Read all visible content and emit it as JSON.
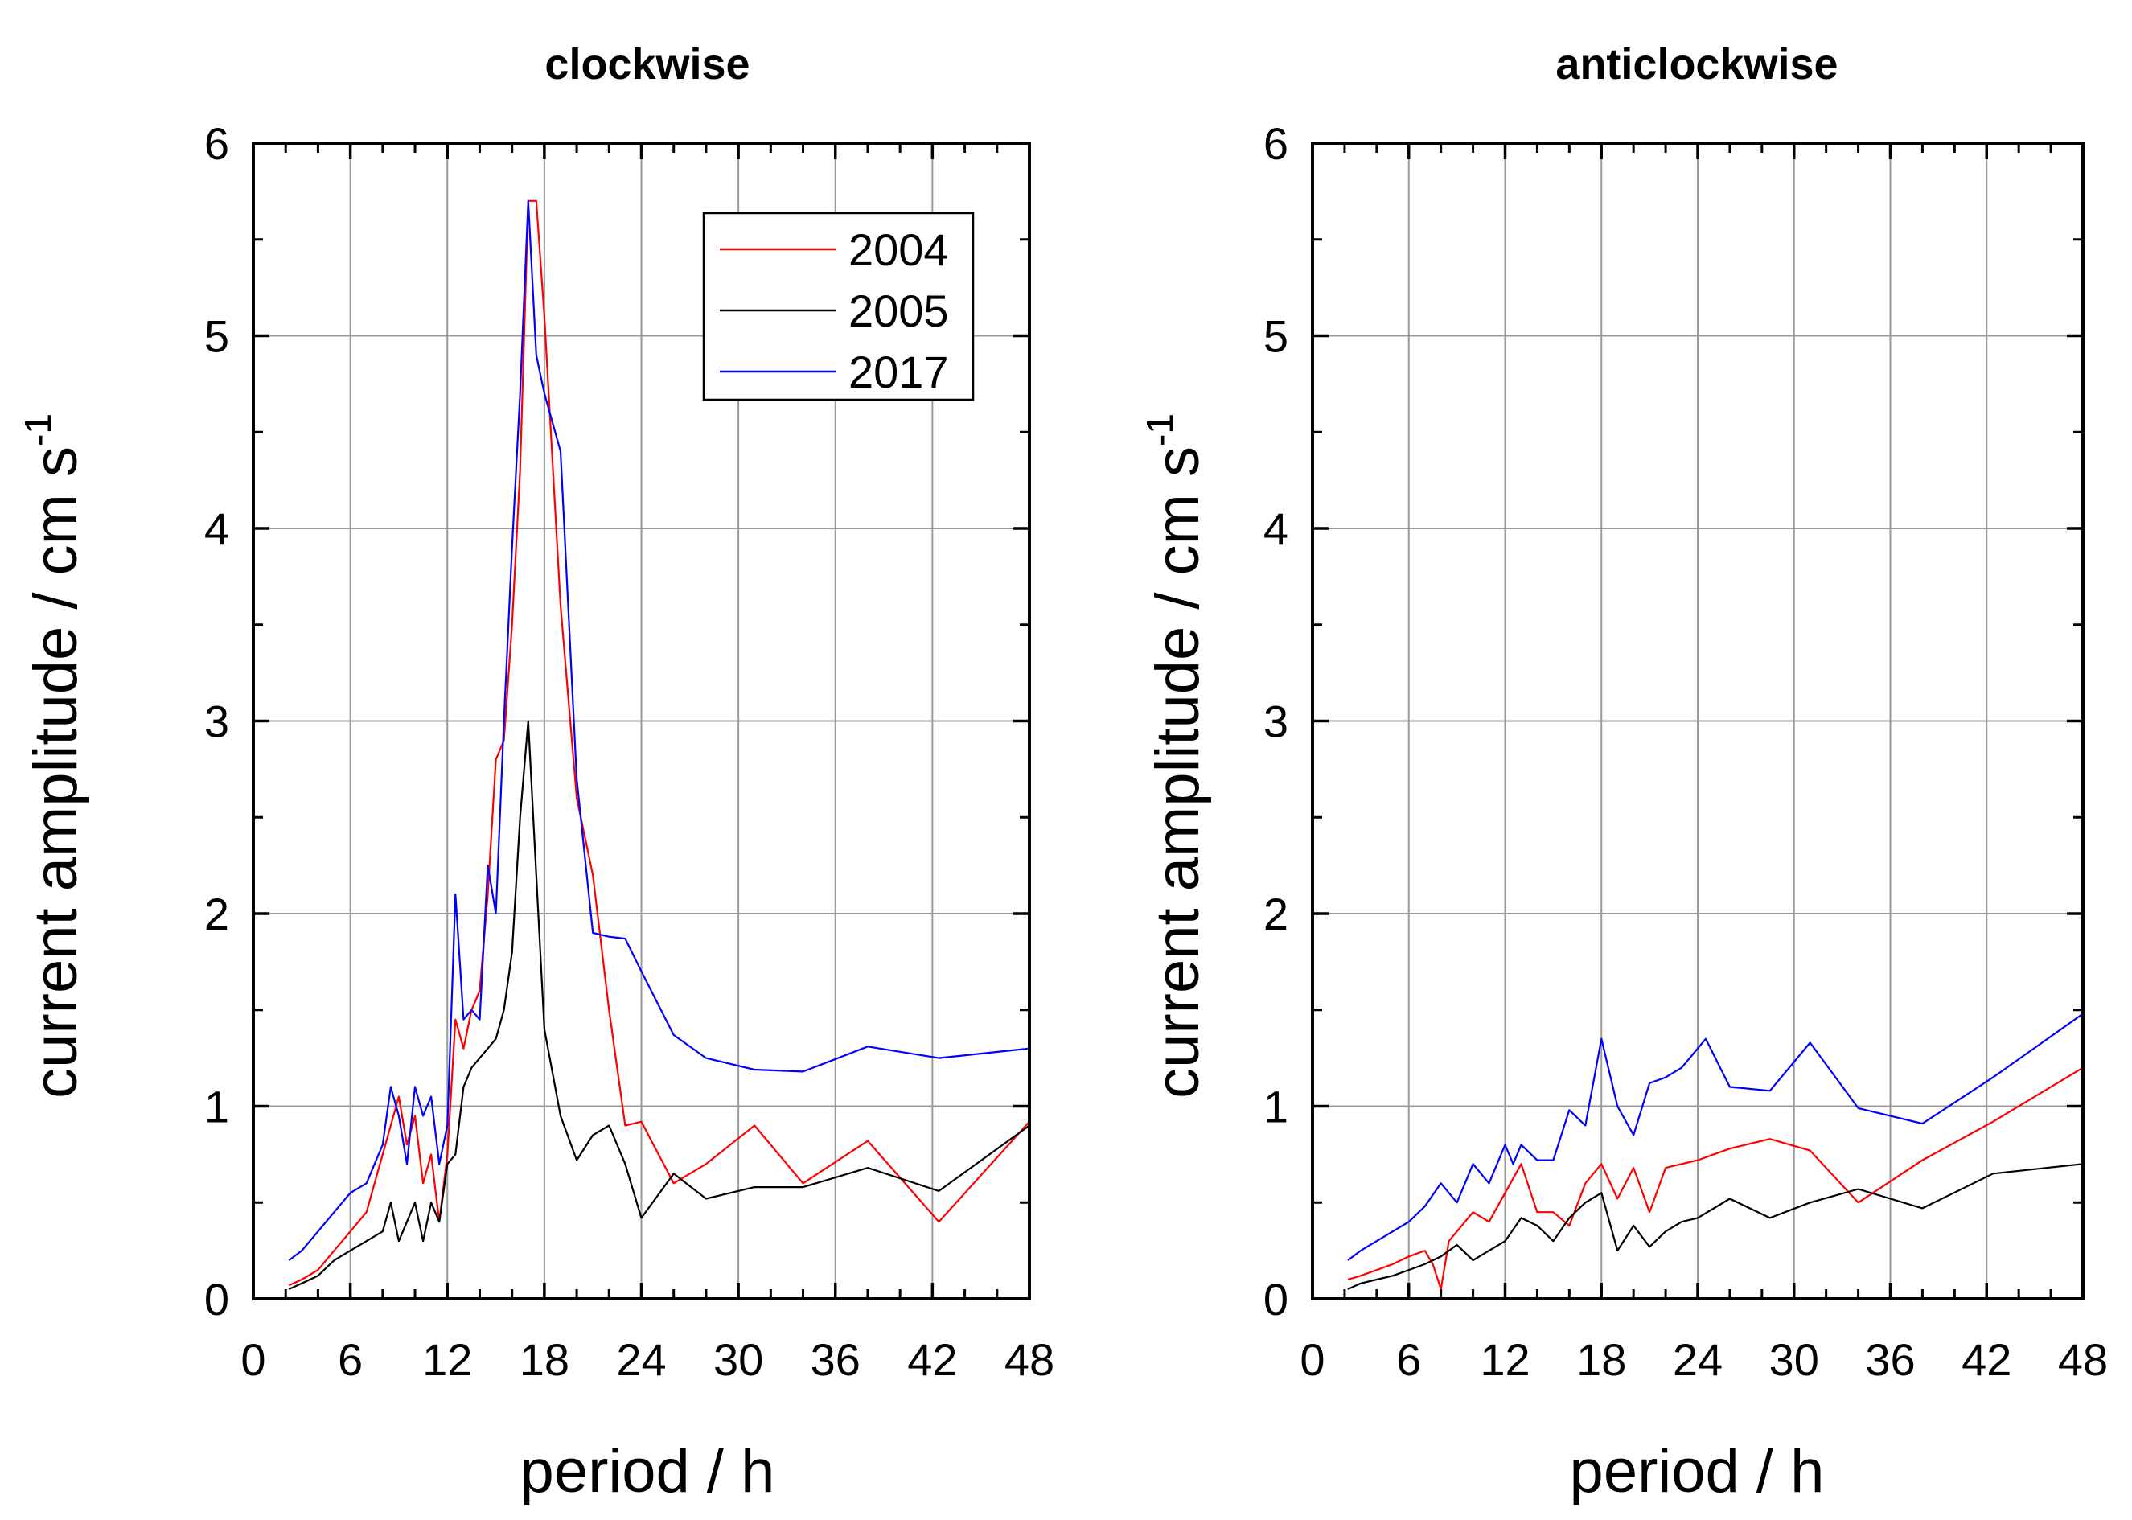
{
  "chart_data": [
    {
      "type": "line",
      "title": "clockwise",
      "xlabel": "period / h",
      "ylabel": "current amplitude / cm s",
      "ylabel_superscript": "-1",
      "xlim": [
        0,
        48
      ],
      "ylim": [
        0,
        6
      ],
      "xticks": [
        "0",
        "6",
        "12",
        "18",
        "24",
        "30",
        "36",
        "42",
        "48"
      ],
      "yticks": [
        "0",
        "1",
        "2",
        "3",
        "4",
        "5",
        "6"
      ],
      "grid": true,
      "legend": "top-right",
      "series": [
        {
          "name": "2004",
          "color": "#ff0000",
          "x": [
            2.2,
            3,
            4,
            5,
            6,
            7,
            8,
            8.5,
            9,
            9.5,
            10,
            10.5,
            11,
            11.5,
            12,
            12.5,
            13,
            13.5,
            14,
            14.5,
            15,
            15.5,
            16,
            16.5,
            17,
            17.5,
            18,
            19,
            20,
            21,
            22,
            23,
            24,
            26,
            28,
            31,
            34,
            38,
            42.4,
            48
          ],
          "y": [
            0.07,
            0.1,
            0.15,
            0.25,
            0.35,
            0.45,
            0.75,
            0.9,
            1.05,
            0.8,
            0.95,
            0.6,
            0.75,
            0.4,
            0.75,
            1.45,
            1.3,
            1.5,
            1.6,
            2.1,
            2.8,
            2.9,
            3.5,
            4.3,
            5.7,
            5.7,
            5.1,
            3.6,
            2.6,
            2.2,
            1.5,
            0.9,
            0.92,
            0.6,
            0.7,
            0.9,
            0.6,
            0.82,
            0.4,
            0.92
          ]
        },
        {
          "name": "2005",
          "color": "#000000",
          "x": [
            2.2,
            3,
            4,
            5,
            6,
            7,
            8,
            8.5,
            9,
            9.5,
            10,
            10.5,
            11,
            11.5,
            12,
            12.5,
            13,
            13.5,
            14,
            14.5,
            15,
            15.5,
            16,
            16.5,
            17,
            17.5,
            18,
            19,
            20,
            21,
            22,
            23,
            24,
            26,
            28,
            31,
            34,
            38,
            42.4,
            48
          ],
          "y": [
            0.05,
            0.08,
            0.12,
            0.2,
            0.25,
            0.3,
            0.35,
            0.5,
            0.3,
            0.4,
            0.5,
            0.3,
            0.5,
            0.4,
            0.7,
            0.75,
            1.1,
            1.2,
            1.25,
            1.3,
            1.35,
            1.5,
            1.8,
            2.5,
            3.0,
            2.2,
            1.4,
            0.95,
            0.72,
            0.85,
            0.9,
            0.7,
            0.42,
            0.65,
            0.52,
            0.58,
            0.58,
            0.68,
            0.56,
            0.9
          ]
        },
        {
          "name": "2017",
          "color": "#0000ff",
          "x": [
            2.2,
            3,
            4,
            5,
            6,
            7,
            8,
            8.5,
            9,
            9.5,
            10,
            10.5,
            11,
            11.5,
            12,
            12.5,
            13,
            13.5,
            14,
            14.5,
            15,
            15.5,
            16,
            16.5,
            17,
            17.5,
            18,
            19,
            20,
            21,
            22,
            23,
            24,
            26,
            28,
            31,
            34,
            38,
            42.4,
            48
          ],
          "y": [
            0.2,
            0.25,
            0.35,
            0.45,
            0.55,
            0.6,
            0.8,
            1.1,
            0.95,
            0.7,
            1.1,
            0.95,
            1.05,
            0.7,
            0.9,
            2.1,
            1.45,
            1.5,
            1.45,
            2.25,
            2.0,
            3.0,
            3.9,
            4.7,
            5.7,
            4.9,
            4.7,
            4.4,
            2.7,
            1.9,
            1.88,
            1.87,
            1.7,
            1.37,
            1.25,
            1.19,
            1.18,
            1.31,
            1.25,
            1.3
          ]
        }
      ]
    },
    {
      "type": "line",
      "title": "anticlockwise",
      "xlabel": "period / h",
      "ylabel": "current amplitude / cm s",
      "ylabel_superscript": "-1",
      "xlim": [
        0,
        48
      ],
      "ylim": [
        0,
        6
      ],
      "xticks": [
        "0",
        "6",
        "12",
        "18",
        "24",
        "30",
        "36",
        "42",
        "48"
      ],
      "yticks": [
        "0",
        "1",
        "2",
        "3",
        "4",
        "5",
        "6"
      ],
      "grid": true,
      "series": [
        {
          "name": "2004",
          "color": "#ff0000",
          "x": [
            2.2,
            3,
            4,
            5,
            6,
            7,
            7.5,
            8,
            8.5,
            9,
            10,
            11,
            12,
            13,
            14,
            15,
            16,
            17,
            18,
            19,
            20,
            21,
            22,
            23,
            24,
            26,
            28.5,
            31,
            34,
            38,
            42.4,
            48
          ],
          "y": [
            0.1,
            0.12,
            0.15,
            0.18,
            0.22,
            0.25,
            0.18,
            0.05,
            0.3,
            0.35,
            0.45,
            0.4,
            0.55,
            0.7,
            0.45,
            0.45,
            0.38,
            0.6,
            0.7,
            0.52,
            0.68,
            0.45,
            0.68,
            0.7,
            0.72,
            0.78,
            0.83,
            0.77,
            0.5,
            0.72,
            0.92,
            1.2
          ]
        },
        {
          "name": "2005",
          "color": "#000000",
          "x": [
            2.2,
            3,
            4,
            5,
            6,
            7,
            8,
            9,
            10,
            11,
            12,
            13,
            14,
            15,
            16,
            17,
            18,
            19,
            20,
            21,
            22,
            23,
            24,
            26,
            28.5,
            31,
            34,
            38,
            42.4,
            48
          ],
          "y": [
            0.05,
            0.08,
            0.1,
            0.12,
            0.15,
            0.18,
            0.22,
            0.28,
            0.2,
            0.25,
            0.3,
            0.42,
            0.38,
            0.3,
            0.42,
            0.5,
            0.55,
            0.25,
            0.38,
            0.27,
            0.35,
            0.4,
            0.42,
            0.52,
            0.42,
            0.5,
            0.57,
            0.47,
            0.65,
            0.7
          ]
        },
        {
          "name": "2017",
          "color": "#0000ff",
          "x": [
            2.2,
            3,
            4,
            5,
            6,
            7,
            8,
            9,
            10,
            11,
            12,
            12.5,
            13,
            14,
            15,
            16,
            17,
            18,
            19,
            20,
            21,
            22,
            23,
            24.5,
            26,
            28.5,
            31,
            34,
            38,
            42.4,
            48
          ],
          "y": [
            0.2,
            0.25,
            0.3,
            0.35,
            0.4,
            0.48,
            0.6,
            0.5,
            0.7,
            0.6,
            0.8,
            0.7,
            0.8,
            0.72,
            0.72,
            0.98,
            0.9,
            1.35,
            1.0,
            0.85,
            1.12,
            1.15,
            1.2,
            1.35,
            1.1,
            1.08,
            1.33,
            0.99,
            0.91,
            1.15,
            1.48
          ]
        }
      ]
    }
  ]
}
